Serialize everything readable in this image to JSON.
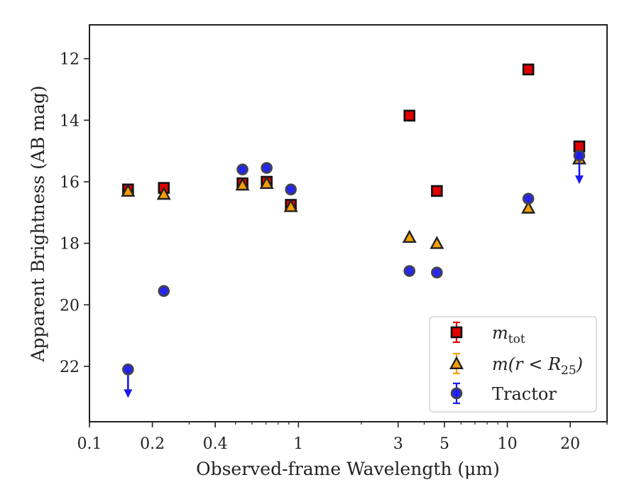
{
  "chart_data": {
    "type": "scatter",
    "xlabel": "Observed-frame Wavelength (μm)",
    "ylabel": "Apparent Brightness (AB mag)",
    "x_scale": "log",
    "xlim": [
      0.1,
      30
    ],
    "ylim": [
      23.8,
      10.9
    ],
    "y_inverted": true,
    "x_ticks": [
      0.1,
      0.2,
      0.4,
      1,
      3,
      5,
      10,
      20
    ],
    "x_tick_labels": [
      "0.1",
      "0.2",
      "0.4",
      "1",
      "3",
      "5",
      "10",
      "20"
    ],
    "y_ticks": [
      12,
      14,
      16,
      18,
      20,
      22
    ],
    "y_tick_labels": [
      "12",
      "14",
      "16",
      "18",
      "20",
      "22"
    ],
    "grid": false,
    "legend_position": "lower-right",
    "series": [
      {
        "name": "m_tot",
        "label_main": "m",
        "label_sub": "tot",
        "marker": "square",
        "color": "#e00000",
        "error_color": "#e00000",
        "points": [
          {
            "x": 0.153,
            "y": 16.25
          },
          {
            "x": 0.227,
            "y": 16.2
          },
          {
            "x": 0.54,
            "y": 16.05
          },
          {
            "x": 0.705,
            "y": 16.0
          },
          {
            "x": 0.92,
            "y": 16.75
          },
          {
            "x": 3.4,
            "y": 13.85
          },
          {
            "x": 4.6,
            "y": 16.3
          },
          {
            "x": 12.6,
            "y": 12.35
          },
          {
            "x": 22.1,
            "y": 14.85
          }
        ]
      },
      {
        "name": "m(r < R25)",
        "label_main": "m(r < R",
        "label_sub": "25",
        "label_end": ")",
        "marker": "triangle",
        "color": "#f5a000",
        "error_color": "#f5a000",
        "points": [
          {
            "x": 0.153,
            "y": 16.3
          },
          {
            "x": 0.227,
            "y": 16.4
          },
          {
            "x": 0.54,
            "y": 16.1
          },
          {
            "x": 0.705,
            "y": 16.05
          },
          {
            "x": 0.92,
            "y": 16.8
          },
          {
            "x": 3.4,
            "y": 17.8
          },
          {
            "x": 4.6,
            "y": 18.0
          },
          {
            "x": 12.6,
            "y": 16.85
          },
          {
            "x": 22.1,
            "y": 15.25
          }
        ]
      },
      {
        "name": "Tractor",
        "label_main": "Tractor",
        "marker": "circle",
        "color": "#1a1aee",
        "error_color": "#1a1aee",
        "points": [
          {
            "x": 0.153,
            "y": 22.1,
            "upper_limit": true
          },
          {
            "x": 0.227,
            "y": 19.55
          },
          {
            "x": 0.54,
            "y": 15.6
          },
          {
            "x": 0.705,
            "y": 15.55
          },
          {
            "x": 0.92,
            "y": 16.25
          },
          {
            "x": 3.4,
            "y": 18.9
          },
          {
            "x": 4.6,
            "y": 18.95
          },
          {
            "x": 12.6,
            "y": 16.55
          },
          {
            "x": 22.1,
            "y": 15.15,
            "upper_limit": true
          }
        ]
      }
    ]
  }
}
